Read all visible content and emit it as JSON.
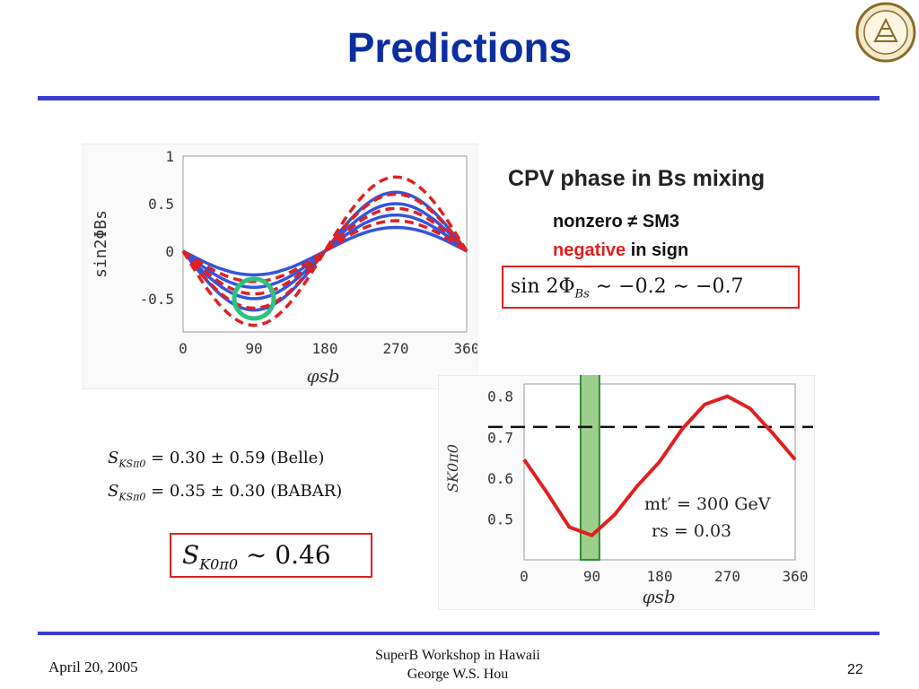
{
  "slide": {
    "title": "Predictions",
    "cpv_title": "CPV phase in Bs mixing",
    "nonzero_line": "nonzero ≠ SM3",
    "negative_word": "negative",
    "in_sign_text": " in sign",
    "sin_formula_prefix": "sin 2Φ",
    "sin_formula_sub": "Bs",
    "sin_formula_suffix": " ∼ −0.2 ∼ −0.7",
    "meas_belle_lhs": "S",
    "meas_belle_sub": "KSπ0",
    "meas_belle_rhs": " = 0.30 ± 0.59 (Belle)",
    "meas_babar_lhs": "S",
    "meas_babar_sub": "KSπ0",
    "meas_babar_rhs": " = 0.35 ± 0.30 (BABAR)",
    "prediction_lhs": "S",
    "prediction_sub": "K0π0",
    "prediction_rhs": " ∼ 0.46"
  },
  "footer": {
    "date": "April 20, 2005",
    "workshop": "SuperB Workshop in Hawaii",
    "author": "George W.S. Hou",
    "page": "22"
  },
  "colors": {
    "title": "#0b2ea0",
    "rule": "#3d3dd6",
    "red": "#e02020",
    "blue": "#3355dd",
    "green": "#7cbf6a"
  },
  "chart_data": [
    {
      "type": "line",
      "ylabel": "sin2ΦBs",
      "xlabel": "φsb",
      "xlim": [
        0,
        360
      ],
      "ylim": [
        -0.85,
        1.0
      ],
      "xticks": [
        "0",
        "90",
        "180",
        "270",
        "360"
      ],
      "yticks": [
        "1",
        "0.5",
        "0",
        "-0.5"
      ],
      "series": [
        {
          "style": "solid-blue",
          "amp": 0.25
        },
        {
          "style": "solid-blue",
          "amp": 0.38
        },
        {
          "style": "solid-blue",
          "amp": 0.5
        },
        {
          "style": "solid-blue",
          "amp": 0.62
        },
        {
          "style": "dashed-red",
          "amp": 0.32
        },
        {
          "style": "dashed-red",
          "amp": 0.45
        },
        {
          "style": "dashed-red",
          "amp": 0.6
        },
        {
          "style": "dashed-red",
          "amp": 0.78
        }
      ],
      "highlight": {
        "x": 90,
        "y": -0.5,
        "color": "green-circle"
      }
    },
    {
      "type": "line",
      "ylabel": "SK0π0",
      "xlabel": "φsb",
      "xlim": [
        0,
        360
      ],
      "ylim": [
        0.4,
        0.83
      ],
      "xticks": [
        "0",
        "90",
        "180",
        "270",
        "360"
      ],
      "yticks": [
        "0.8",
        "0.7",
        "0.6",
        "0.5"
      ],
      "x": [
        0,
        30,
        60,
        90,
        120,
        150,
        180,
        210,
        240,
        270,
        300,
        330,
        360
      ],
      "y": [
        0.645,
        0.565,
        0.48,
        0.46,
        0.51,
        0.58,
        0.64,
        0.72,
        0.78,
        0.8,
        0.77,
        0.71,
        0.645
      ],
      "reference_line": 0.725,
      "band": [
        75,
        100
      ],
      "annotation_mass": "mt′ = 300 GeV",
      "annotation_rs": "rs = 0.03"
    }
  ]
}
